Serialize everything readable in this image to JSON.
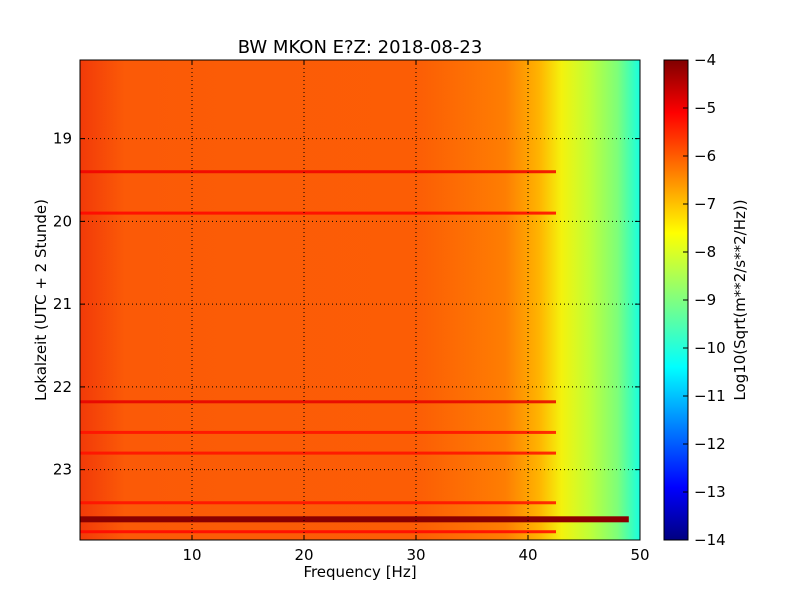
{
  "chart_data": {
    "type": "heatmap",
    "title": "BW MKON E?Z: 2018-08-23",
    "xlabel": "Frequency [Hz]",
    "ylabel": "Lokalzeit (UTC + 2 Stunde)",
    "xlim": [
      0,
      50
    ],
    "ylim": [
      23.85,
      18.05
    ],
    "x_ticks": [
      10,
      20,
      30,
      40,
      50
    ],
    "y_ticks": [
      19,
      20,
      21,
      22,
      23
    ],
    "grid": true,
    "grid_style": "dotted",
    "colormap": "jet",
    "colorbar": {
      "label": "Log10(Sqrt(m**2/s**2/Hz))",
      "range": [
        -14,
        -4
      ],
      "ticks": [
        -4,
        -5,
        -6,
        -7,
        -8,
        -9,
        -10,
        -11,
        -12,
        -13,
        -14
      ]
    },
    "value_profile": {
      "frequency_hz": [
        0,
        5,
        10,
        20,
        30,
        38,
        40,
        42,
        44,
        46,
        48,
        50
      ],
      "log_amplitude": [
        -5.3,
        -5.6,
        -5.65,
        -5.7,
        -5.7,
        -5.8,
        -6.2,
        -7.0,
        -7.8,
        -8.6,
        -9.4,
        -10.3
      ]
    },
    "horizontal_bands": [
      {
        "time_hours": 19.4,
        "log_amplitude": -5.1
      },
      {
        "time_hours": 19.9,
        "log_amplitude": -5.3
      },
      {
        "time_hours": 22.18,
        "log_amplitude": -5.0
      },
      {
        "time_hours": 22.55,
        "log_amplitude": -5.4
      },
      {
        "time_hours": 22.8,
        "log_amplitude": -5.4
      },
      {
        "time_hours": 23.4,
        "log_amplitude": -5.4
      },
      {
        "time_hours": 23.6,
        "log_amplitude": -4.1
      },
      {
        "time_hours": 23.75,
        "log_amplitude": -5.3
      }
    ]
  }
}
